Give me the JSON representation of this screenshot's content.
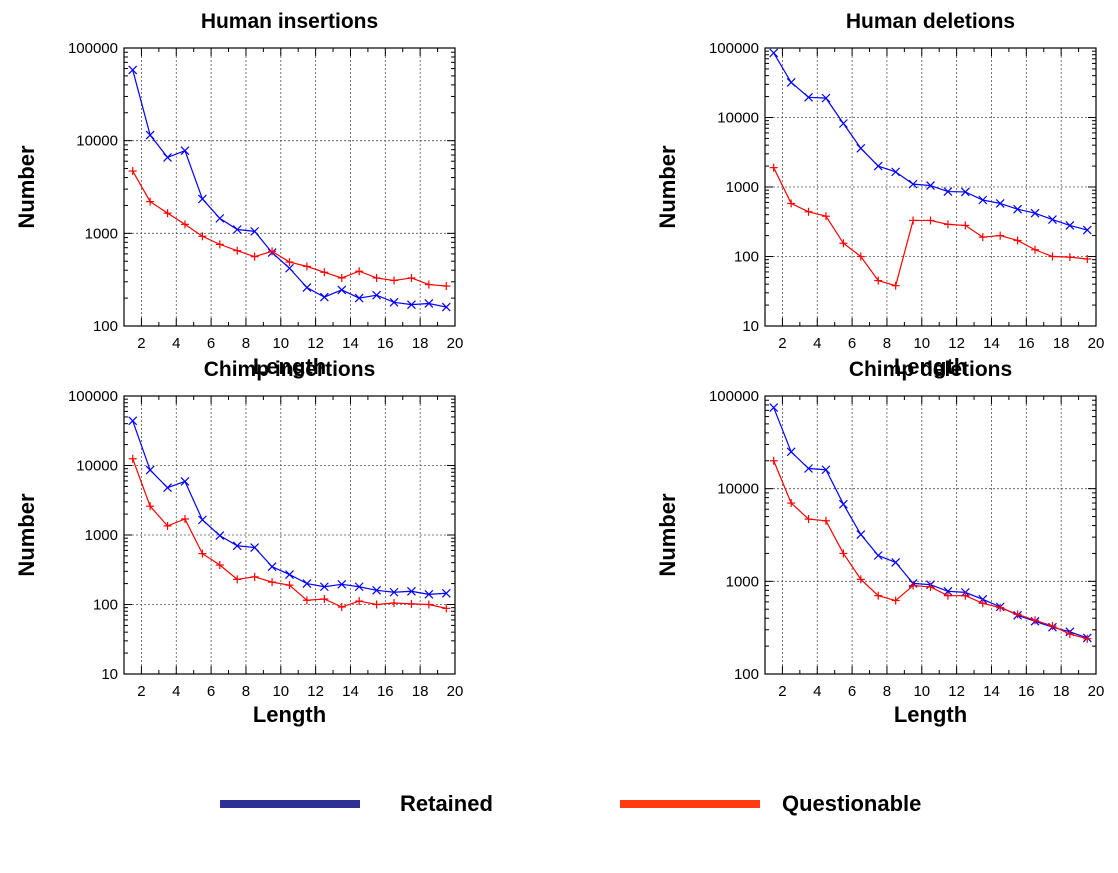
{
  "legend": {
    "placement": "bottom",
    "items": [
      {
        "label": "Retained",
        "color": "#2e3192"
      },
      {
        "label": "Questionable",
        "color": "#ff3b0f"
      }
    ]
  },
  "series_colors": {
    "retained": "#0000ff",
    "questionable": "#ff0000"
  },
  "chart_data": [
    {
      "type": "line",
      "title": "Human insertions",
      "xlabel": "Length",
      "ylabel": "Number",
      "yscale": "log",
      "grid": true,
      "xlim": [
        1,
        20
      ],
      "ylim": [
        100,
        100000
      ],
      "xticks": [
        2,
        4,
        6,
        8,
        10,
        12,
        14,
        16,
        18,
        20
      ],
      "yticks": [
        100,
        1000,
        10000,
        100000
      ],
      "ytick_labels": [
        "100",
        "1000",
        "10000",
        "100000"
      ],
      "x": [
        1.5,
        2.5,
        3.5,
        4.5,
        5.5,
        6.5,
        7.5,
        8.5,
        9.5,
        10.5,
        11.5,
        12.5,
        13.5,
        14.5,
        15.5,
        16.5,
        17.5,
        18.5,
        19.5
      ],
      "series": [
        {
          "key": "retained",
          "marker": "x",
          "values": [
            58000,
            11500,
            6600,
            7800,
            2350,
            1450,
            1100,
            1050,
            620,
            420,
            260,
            205,
            245,
            200,
            215,
            180,
            170,
            175,
            160
          ]
        },
        {
          "key": "questionable",
          "marker": "+",
          "values": [
            4700,
            2200,
            1650,
            1250,
            930,
            760,
            650,
            560,
            640,
            490,
            440,
            380,
            330,
            390,
            330,
            310,
            330,
            280,
            270
          ]
        }
      ]
    },
    {
      "type": "line",
      "title": "Human deletions",
      "xlabel": "Length",
      "ylabel": "Number",
      "yscale": "log",
      "grid": true,
      "xlim": [
        1,
        20
      ],
      "ylim": [
        10,
        100000
      ],
      "xticks": [
        2,
        4,
        6,
        8,
        10,
        12,
        14,
        16,
        18,
        20
      ],
      "yticks": [
        10,
        100,
        1000,
        10000,
        100000
      ],
      "ytick_labels": [
        "10",
        "100",
        "1000",
        "10000",
        "100000"
      ],
      "x": [
        1.5,
        2.5,
        3.5,
        4.5,
        5.5,
        6.5,
        7.5,
        8.5,
        9.5,
        10.5,
        11.5,
        12.5,
        13.5,
        14.5,
        15.5,
        16.5,
        17.5,
        18.5,
        19.5
      ],
      "series": [
        {
          "key": "retained",
          "marker": "x",
          "values": [
            85000,
            32000,
            19500,
            19000,
            8200,
            3600,
            2000,
            1650,
            1100,
            1050,
            860,
            850,
            650,
            580,
            480,
            420,
            340,
            280,
            240
          ]
        },
        {
          "key": "questionable",
          "marker": "+",
          "values": [
            1900,
            580,
            440,
            380,
            155,
            100,
            45,
            38,
            330,
            330,
            290,
            280,
            190,
            200,
            170,
            125,
            100,
            98,
            92
          ]
        }
      ]
    },
    {
      "type": "line",
      "title": "Chimp insertions",
      "xlabel": "Length",
      "ylabel": "Number",
      "yscale": "log",
      "grid": true,
      "xlim": [
        1,
        20
      ],
      "ylim": [
        10,
        100000
      ],
      "xticks": [
        2,
        4,
        6,
        8,
        10,
        12,
        14,
        16,
        18,
        20
      ],
      "yticks": [
        10,
        100,
        1000,
        10000,
        100000
      ],
      "ytick_labels": [
        "10",
        "100",
        "1000",
        "10000",
        "100000"
      ],
      "x": [
        1.5,
        2.5,
        3.5,
        4.5,
        5.5,
        6.5,
        7.5,
        8.5,
        9.5,
        10.5,
        11.5,
        12.5,
        13.5,
        14.5,
        15.5,
        16.5,
        17.5,
        18.5,
        19.5
      ],
      "series": [
        {
          "key": "retained",
          "marker": "x",
          "values": [
            44000,
            8600,
            4800,
            5900,
            1650,
            980,
            700,
            660,
            350,
            270,
            200,
            180,
            195,
            180,
            160,
            150,
            155,
            140,
            145
          ]
        },
        {
          "key": "questionable",
          "marker": "+",
          "values": [
            12500,
            2600,
            1350,
            1700,
            540,
            370,
            230,
            250,
            210,
            190,
            115,
            120,
            92,
            112,
            100,
            105,
            102,
            100,
            88
          ]
        }
      ]
    },
    {
      "type": "line",
      "title": "Chimp deletions",
      "xlabel": "Length",
      "ylabel": "Number",
      "yscale": "log",
      "grid": true,
      "xlim": [
        1,
        20
      ],
      "ylim": [
        100,
        100000
      ],
      "xticks": [
        2,
        4,
        6,
        8,
        10,
        12,
        14,
        16,
        18,
        20
      ],
      "yticks": [
        100,
        1000,
        10000,
        100000
      ],
      "ytick_labels": [
        "100",
        "1000",
        "10000",
        "100000"
      ],
      "x": [
        1.5,
        2.5,
        3.5,
        4.5,
        5.5,
        6.5,
        7.5,
        8.5,
        9.5,
        10.5,
        11.5,
        12.5,
        13.5,
        14.5,
        15.5,
        16.5,
        17.5,
        18.5,
        19.5
      ],
      "series": [
        {
          "key": "retained",
          "marker": "x",
          "values": [
            75000,
            25000,
            16500,
            16000,
            6800,
            3200,
            1900,
            1600,
            950,
            920,
            780,
            760,
            640,
            530,
            430,
            370,
            320,
            285,
            245
          ]
        },
        {
          "key": "questionable",
          "marker": "+",
          "values": [
            20000,
            7000,
            4700,
            4500,
            2000,
            1050,
            700,
            620,
            900,
            870,
            700,
            700,
            580,
            520,
            440,
            380,
            330,
            270,
            240
          ]
        }
      ]
    }
  ]
}
